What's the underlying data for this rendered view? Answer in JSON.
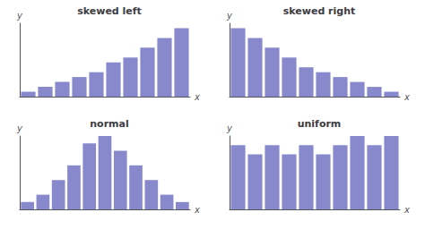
{
  "chart_data": [
    {
      "type": "bar",
      "title": "skewed left",
      "xlabel": "x",
      "ylabel": "y",
      "categories": [
        null,
        null,
        null,
        null,
        null,
        null,
        null,
        null,
        null,
        null
      ],
      "values": [
        1,
        2,
        3,
        4,
        5,
        7,
        8,
        10,
        12,
        14
      ],
      "color": "#8888cc",
      "ylim": [
        0,
        15
      ],
      "tick_labels": false,
      "grid": false
    },
    {
      "type": "bar",
      "title": "skewed right",
      "xlabel": "x",
      "ylabel": "y",
      "categories": [
        null,
        null,
        null,
        null,
        null,
        null,
        null,
        null,
        null,
        null
      ],
      "values": [
        14,
        12,
        10,
        8,
        6,
        5,
        4,
        3,
        2,
        1
      ],
      "color": "#8888cc",
      "ylim": [
        0,
        15
      ],
      "tick_labels": false,
      "grid": false
    },
    {
      "type": "bar",
      "title": "normal",
      "xlabel": "x",
      "ylabel": "y",
      "categories": [
        null,
        null,
        null,
        null,
        null,
        null,
        null,
        null,
        null,
        null,
        null
      ],
      "values": [
        1,
        2,
        4,
        6,
        9,
        10,
        8,
        6,
        4,
        2,
        1
      ],
      "color": "#8888cc",
      "ylim": [
        0,
        10
      ],
      "tick_labels": false,
      "grid": false
    },
    {
      "type": "bar",
      "title": "uniform",
      "xlabel": "x",
      "ylabel": "y",
      "categories": [
        null,
        null,
        null,
        null,
        null,
        null,
        null,
        null,
        null,
        null
      ],
      "values": [
        7,
        6,
        7,
        6,
        7,
        6,
        7,
        8,
        7,
        8
      ],
      "color": "#8888cc",
      "ylim": [
        0,
        8
      ],
      "tick_labels": false,
      "grid": false
    }
  ]
}
